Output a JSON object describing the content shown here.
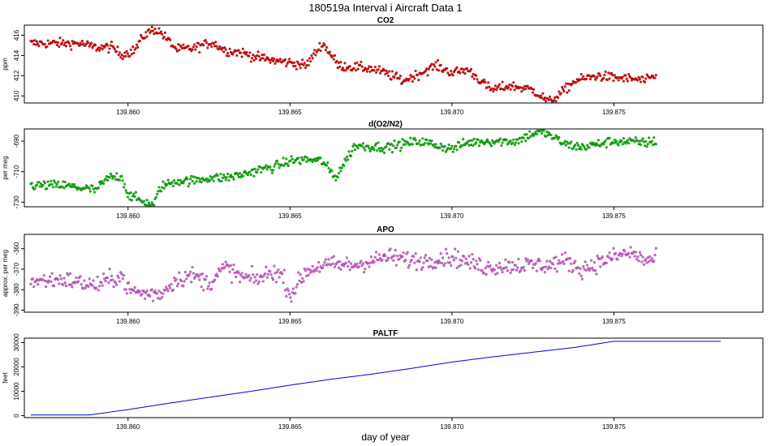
{
  "figure": {
    "title": "180519a   Interval i Aircraft Data 1",
    "xlabel": "day of year"
  },
  "colors": {
    "co2": "#ff0000",
    "o2n2": "#00cc00",
    "apo": "#ee66ee",
    "paltf": "#0000ee"
  },
  "chart_data": [
    {
      "type": "scatter",
      "title": "CO2",
      "xlabel": "",
      "ylabel": "ppm",
      "xlim": [
        139.8568,
        139.8796
      ],
      "ylim": [
        409.3,
        417.0
      ],
      "xticks": [
        139.86,
        139.865,
        139.87,
        139.875
      ],
      "xtick_labels": [
        "139.860",
        "139.865",
        "139.870",
        "139.875"
      ],
      "yticks": [
        410,
        412,
        414,
        416
      ],
      "ytick_labels": [
        "410",
        "412",
        "414",
        "416"
      ],
      "x_start": 139.857,
      "x_end": 139.8763,
      "series_knots": {
        "x": [
          139.857,
          139.8578,
          139.8585,
          139.859,
          139.8595,
          139.8598,
          139.8602,
          139.8605,
          139.8608,
          139.861,
          139.8615,
          139.862,
          139.8626,
          139.863,
          139.8635,
          139.864,
          139.8645,
          139.865,
          139.8655,
          139.866,
          139.8662,
          139.8665,
          139.8675,
          139.868,
          139.8685,
          139.869,
          139.8695,
          139.87,
          139.8705,
          139.8712,
          139.8718,
          139.8725,
          139.873,
          139.8732,
          139.8738,
          139.8745,
          139.875,
          139.8755,
          139.876,
          139.8763
        ],
        "y": [
          415.2,
          415.2,
          415.2,
          414.8,
          414.8,
          414.1,
          414.5,
          416.0,
          416.6,
          416.3,
          414.6,
          414.7,
          415.3,
          414.5,
          414.3,
          413.8,
          413.5,
          413.3,
          413.0,
          415.2,
          414.4,
          413.0,
          412.7,
          412.2,
          411.5,
          412.2,
          413.0,
          412.3,
          412.6,
          410.6,
          411.0,
          410.6,
          409.4,
          409.8,
          411.5,
          412.0,
          411.8,
          411.7,
          411.5,
          412.0
        ]
      },
      "noise": 0.45
    },
    {
      "type": "scatter",
      "title": "d(O2/N2)",
      "xlabel": "",
      "ylabel": "per meg",
      "xlim": [
        139.8568,
        139.8796
      ],
      "ylim": [
        -733,
        -682
      ],
      "xticks": [
        139.86,
        139.865,
        139.87,
        139.875
      ],
      "xtick_labels": [
        "139.860",
        "139.865",
        "139.870",
        "139.875"
      ],
      "yticks": [
        -730,
        -710,
        -690
      ],
      "ytick_labels": [
        "-730",
        "-710",
        "-690"
      ],
      "x_start": 139.857,
      "x_end": 139.8763,
      "series_knots": {
        "x": [
          139.857,
          139.858,
          139.859,
          139.8594,
          139.8598,
          139.86,
          139.8605,
          139.8608,
          139.861,
          139.8615,
          139.862,
          139.8625,
          139.863,
          139.8635,
          139.864,
          139.8645,
          139.865,
          139.8655,
          139.866,
          139.8664,
          139.867,
          139.868,
          139.869,
          139.87,
          139.8705,
          139.871,
          139.872,
          139.8725,
          139.8728,
          139.873,
          139.8735,
          139.874,
          139.875,
          139.876,
          139.8763
        ],
        "y": [
          -719,
          -719,
          -722,
          -714,
          -713,
          -725,
          -730,
          -732,
          -720,
          -716,
          -716,
          -714,
          -714,
          -712,
          -709,
          -707,
          -703,
          -702,
          -703,
          -714,
          -693,
          -694,
          -690,
          -695,
          -691,
          -690,
          -690,
          -685,
          -684,
          -686,
          -692,
          -694,
          -690,
          -691,
          -690
        ]
      },
      "noise": 3.0
    },
    {
      "type": "scatter",
      "title": "APO",
      "xlabel": "",
      "ylabel": "approx. per meg",
      "xlim": [
        139.8568,
        139.8796
      ],
      "ylim": [
        -391,
        -353
      ],
      "xticks": [
        139.86,
        139.865,
        139.87,
        139.875
      ],
      "xtick_labels": [
        "139.860",
        "139.865",
        "139.870",
        "139.875"
      ],
      "yticks": [
        -390,
        -380,
        -370,
        -360
      ],
      "ytick_labels": [
        "-390",
        "-380",
        "-370",
        "-360"
      ],
      "x_start": 139.857,
      "x_end": 139.8763,
      "series_knots": {
        "x": [
          139.857,
          139.858,
          139.859,
          139.8598,
          139.86,
          139.8605,
          139.861,
          139.8615,
          139.862,
          139.8625,
          139.863,
          139.8635,
          139.864,
          139.8645,
          139.8648,
          139.865,
          139.8655,
          139.866,
          139.867,
          139.868,
          139.869,
          139.87,
          139.871,
          139.872,
          139.873,
          139.8735,
          139.874,
          139.875,
          139.8755,
          139.876,
          139.8763
        ],
        "y": [
          -376,
          -375,
          -378,
          -373,
          -380,
          -382,
          -382,
          -375,
          -373,
          -377,
          -369,
          -374,
          -375,
          -371,
          -374,
          -383,
          -371,
          -368,
          -368,
          -364,
          -366,
          -364,
          -369,
          -368,
          -368,
          -366,
          -370,
          -364,
          -362,
          -366,
          -365
        ]
      },
      "noise": 4.0
    },
    {
      "type": "line",
      "title": "PALTF",
      "xlabel": "day of year",
      "ylabel": "feet",
      "xlim": [
        139.8568,
        139.8796
      ],
      "ylim": [
        -800,
        31800
      ],
      "xticks": [
        139.86,
        139.865,
        139.87,
        139.875
      ],
      "xtick_labels": [
        "139.860",
        "139.865",
        "139.870",
        "139.875"
      ],
      "yticks": [
        0,
        10000,
        20000,
        30000
      ],
      "ytick_labels": [
        "0",
        "10000",
        "20000",
        "30000"
      ],
      "x": [
        139.857,
        139.8588,
        139.86,
        139.8612,
        139.8625,
        139.8638,
        139.865,
        139.8663,
        139.8675,
        139.8688,
        139.87,
        139.8712,
        139.8725,
        139.8738,
        139.875,
        139.8763,
        139.8783
      ],
      "y": [
        300,
        300,
        2500,
        5000,
        7500,
        10000,
        12500,
        15000,
        17000,
        19500,
        22000,
        24000,
        26000,
        28000,
        30500,
        30500,
        30500
      ]
    }
  ]
}
